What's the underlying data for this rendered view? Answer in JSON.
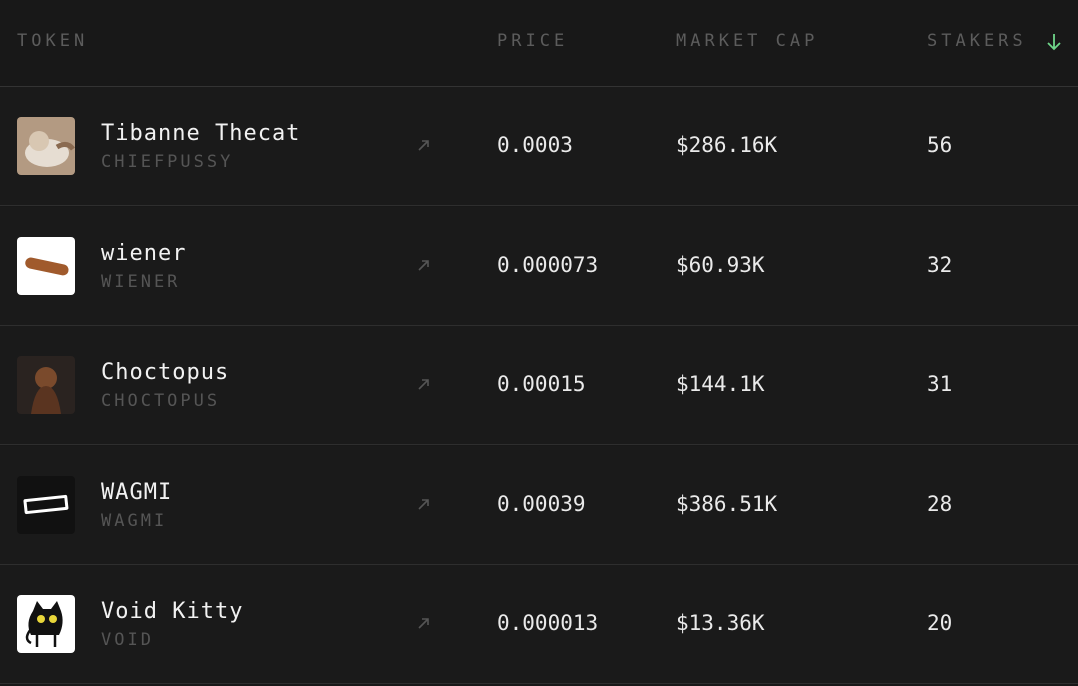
{
  "table": {
    "columns": [
      "TOKEN",
      "PRICE",
      "MARKET CAP",
      "STAKERS"
    ],
    "rows": [
      {
        "name": "Tibanne Thecat",
        "symbol": "CHIEFPUSSY",
        "price": 0.0003,
        "market_cap": "$286.16K",
        "stakers": 56
      },
      {
        "name": "wiener",
        "symbol": "WIENER",
        "price": 7.3e-05,
        "market_cap": "$60.93K",
        "stakers": 32
      },
      {
        "name": "Choctopus",
        "symbol": "CHOCTOPUS",
        "price": 0.00015,
        "market_cap": "$144.1K",
        "stakers": 31
      },
      {
        "name": "WAGMI",
        "symbol": "WAGMI",
        "price": 0.00039,
        "market_cap": "$386.51K",
        "stakers": 28
      },
      {
        "name": "Void Kitty",
        "symbol": "VOID",
        "price": 1.3e-05,
        "market_cap": "$13.36K",
        "stakers": 20
      }
    ]
  }
}
